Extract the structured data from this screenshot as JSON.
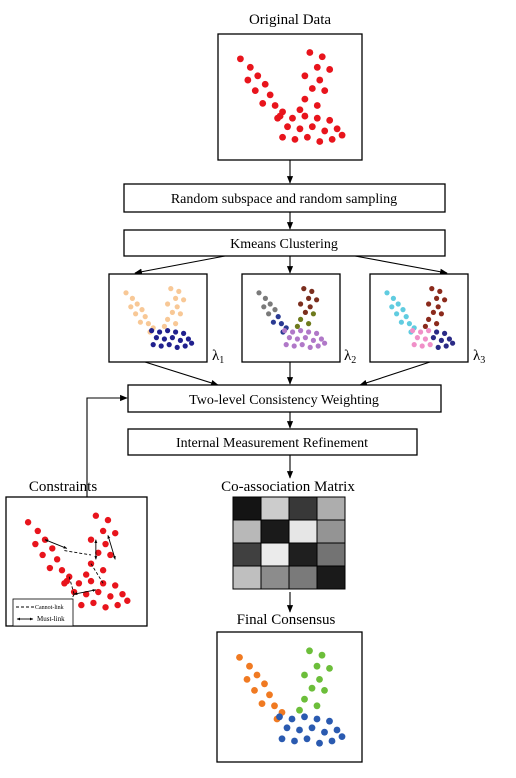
{
  "labels": {
    "original_data": "Original Data",
    "random_subspace": "Random subspace and random sampling",
    "kmeans": "Kmeans Clustering",
    "two_level": "Two-level Consistency Weighting",
    "internal_refinement": "Internal Measurement Refinement",
    "coassociation": "Co-association Matrix",
    "constraints": "Constraints",
    "final_consensus": "Final Consensus",
    "cannot_link": "Cannot-link",
    "must_link": "Must-link"
  },
  "lambdas": [
    {
      "symbol": "λ",
      "sub": "1"
    },
    {
      "symbol": "λ",
      "sub": "2"
    },
    {
      "symbol": "λ",
      "sub": "3"
    }
  ],
  "colors": {
    "original": "#e8141c",
    "constraints": "#e8141c",
    "clustering_1": [
      "#f8c896",
      "#f8c896",
      "#20208e"
    ],
    "clustering_2": [
      "#7a7a7a",
      "#7b2e1e",
      "#2a3a92",
      "#6e7a1c",
      "#b078c8"
    ],
    "clustering_3": [
      "#60cce0",
      "#8b2a1c",
      "#f090c8",
      "#2a2a86"
    ],
    "final": [
      "#f07a22",
      "#6cbe3a",
      "#2a5ab0"
    ]
  },
  "matrix_gray_levels": [
    [
      0.08,
      0.8,
      0.22,
      0.68
    ],
    [
      0.72,
      0.1,
      0.9,
      0.58
    ],
    [
      0.25,
      0.92,
      0.12,
      0.45
    ],
    [
      0.75,
      0.55,
      0.48,
      0.1
    ]
  ]
}
